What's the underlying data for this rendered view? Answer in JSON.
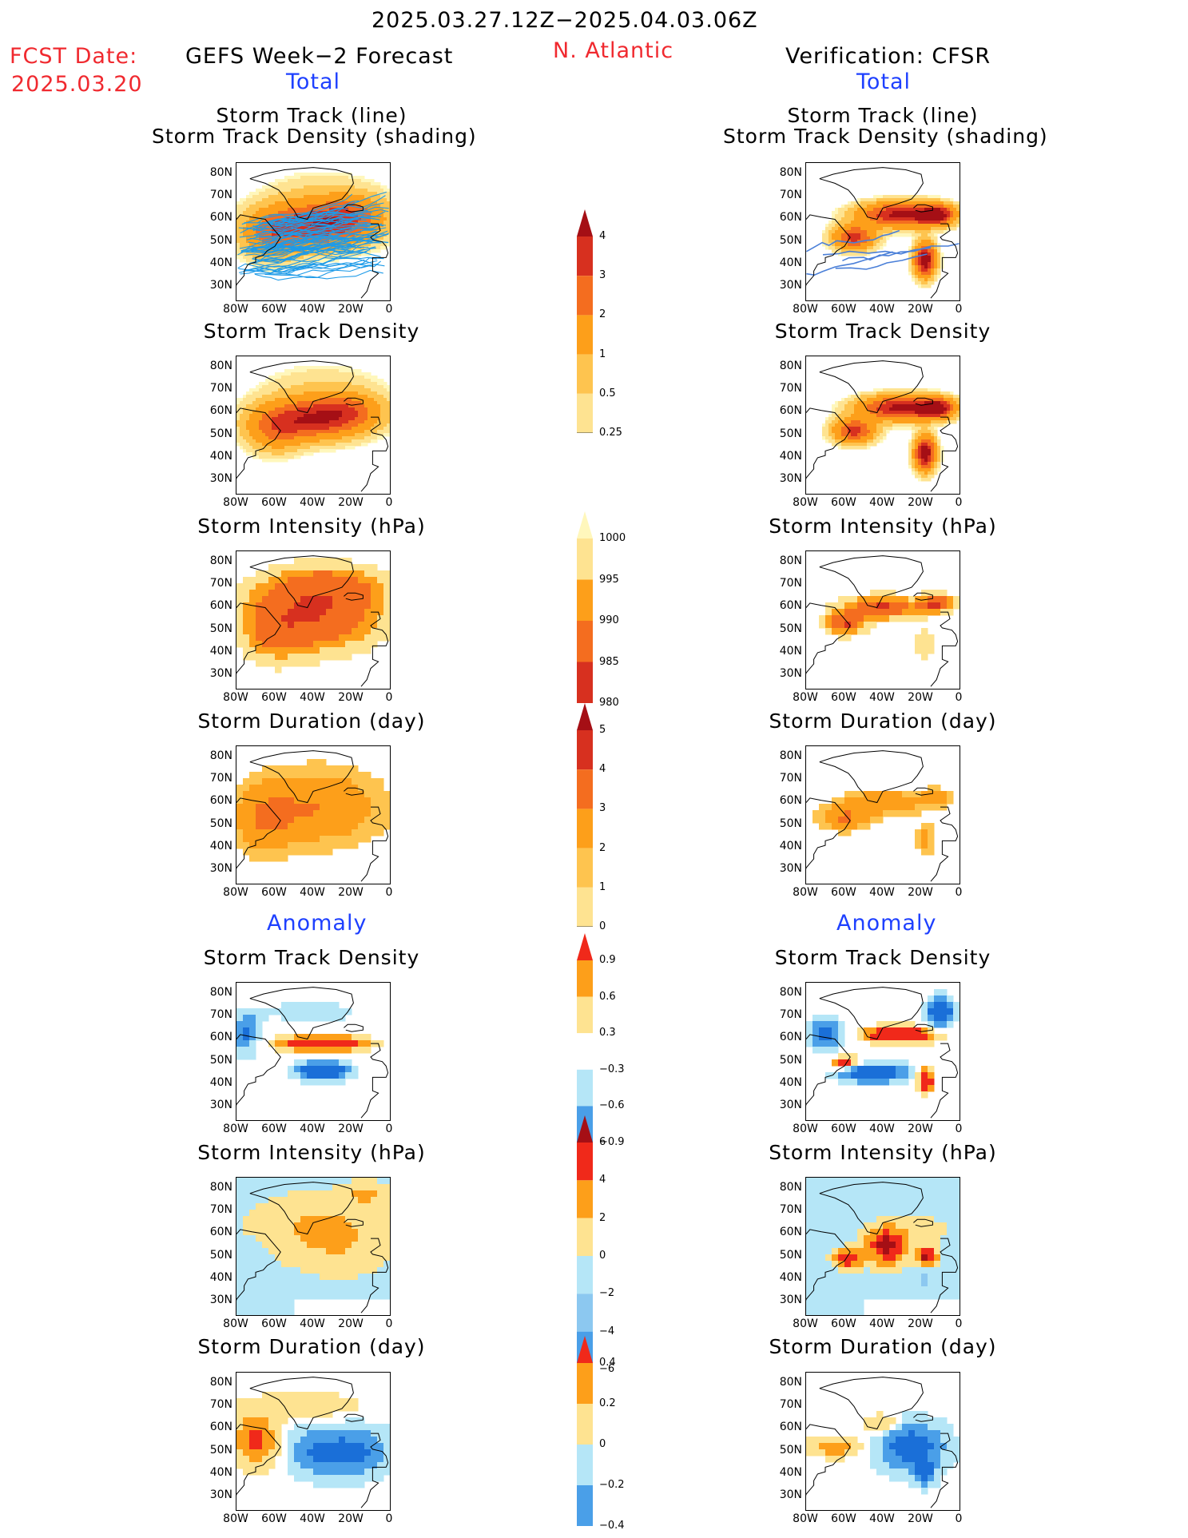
{
  "header": {
    "date_range": "2025.03.27.12Z−2025.04.03.06Z",
    "fcst_label": "FCST Date:",
    "fcst_date": "2025.03.20",
    "left_title": "GEFS Week−2 Forecast",
    "region": "N. Atlantic",
    "right_title": "Verification: CFSR"
  },
  "sections": {
    "total": "Total",
    "anomaly": "Anomaly"
  },
  "panel_titles": {
    "track_line": "Storm Track (line)",
    "track_shading": "Storm Track Density (shading)",
    "density": "Storm Track Density",
    "intensity": "Storm Intensity (hPa)",
    "duration": "Storm Duration (day)"
  },
  "axes": {
    "lat_labels": [
      "80N",
      "70N",
      "60N",
      "50N",
      "40N",
      "30N"
    ],
    "lon_labels": [
      "80W",
      "60W",
      "40W",
      "20W",
      "0"
    ]
  },
  "colorbars": {
    "density_total": {
      "labels": [
        "4",
        "3",
        "2",
        "1",
        "0.5",
        "0.25"
      ],
      "colors": [
        "#a50f15",
        "#d7301f",
        "#f46d1f",
        "#fd9f1a",
        "#fec44f",
        "#fee391",
        "#fff7bc"
      ]
    },
    "intensity_total": {
      "labels": [
        "1000",
        "995",
        "990",
        "985",
        "980"
      ],
      "colors": [
        "#fff7bc",
        "#fee391",
        "#fd9f1a",
        "#f46d1f",
        "#d7301f",
        "#a50f15"
      ]
    },
    "duration_total": {
      "labels": [
        "5",
        "4",
        "3",
        "2",
        "1",
        "0"
      ],
      "colors": [
        "#a50f15",
        "#d7301f",
        "#f46d1f",
        "#fd9f1a",
        "#fec44f",
        "#fee391",
        "#fff7bc"
      ]
    },
    "density_anom": {
      "labels": [
        "0.9",
        "0.6",
        "0.3",
        "−0.3",
        "−0.6",
        "−0.9"
      ],
      "colors": [
        "#f0291a",
        "#fd9f1a",
        "#fee391",
        "#ffffff",
        "#b5e6f7",
        "#4a9fe8",
        "#1a6fd8"
      ]
    },
    "intensity_anom": {
      "labels": [
        "6",
        "4",
        "2",
        "0",
        "−2",
        "−4",
        "−6"
      ],
      "colors": [
        "#a50f15",
        "#f0291a",
        "#fd9f1a",
        "#fee391",
        "#b5e6f7",
        "#8cc8f0",
        "#4a9fe8",
        "#1a6fd8"
      ]
    },
    "duration_anom": {
      "labels": [
        "0.4",
        "0.2",
        "0",
        "−0.2",
        "−0.4"
      ],
      "colors": [
        "#f0291a",
        "#fd9f1a",
        "#fee391",
        "#b5e6f7",
        "#4a9fe8",
        "#1a6fd8"
      ]
    }
  }
}
